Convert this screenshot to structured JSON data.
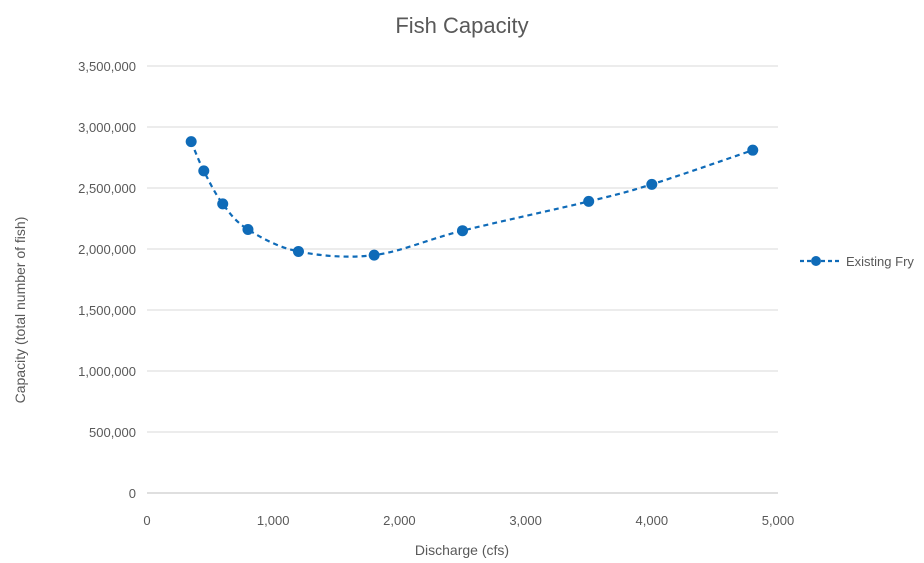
{
  "chart_data": {
    "type": "scatter",
    "title": "Fish Capacity",
    "xlabel": "Discharge (cfs)",
    "ylabel": "Capacity (total number of fish)",
    "xlim": [
      0,
      5000
    ],
    "ylim": [
      0,
      3500000
    ],
    "x_ticks": [
      0,
      1000,
      2000,
      3000,
      4000,
      5000
    ],
    "y_ticks": [
      0,
      500000,
      1000000,
      1500000,
      2000000,
      2500000,
      3000000,
      3500000
    ],
    "x_tick_labels": [
      "0",
      "1,000",
      "2,000",
      "3,000",
      "4,000",
      "5,000"
    ],
    "y_tick_labels": [
      "0",
      "500,000",
      "1,000,000",
      "1,500,000",
      "2,000,000",
      "2,500,000",
      "3,000,000",
      "3,500,000"
    ],
    "grid": "horizontal",
    "legend_position": "right",
    "line_style": "dashed-smooth-with-markers",
    "series": [
      {
        "name": "Existing Fry",
        "color": "#0f6bb8",
        "x": [
          350,
          450,
          600,
          800,
          1200,
          1800,
          2500,
          3500,
          4000,
          4800
        ],
        "y": [
          2880000,
          2640000,
          2370000,
          2160000,
          1980000,
          1950000,
          2150000,
          2390000,
          2530000,
          2810000
        ]
      }
    ]
  }
}
